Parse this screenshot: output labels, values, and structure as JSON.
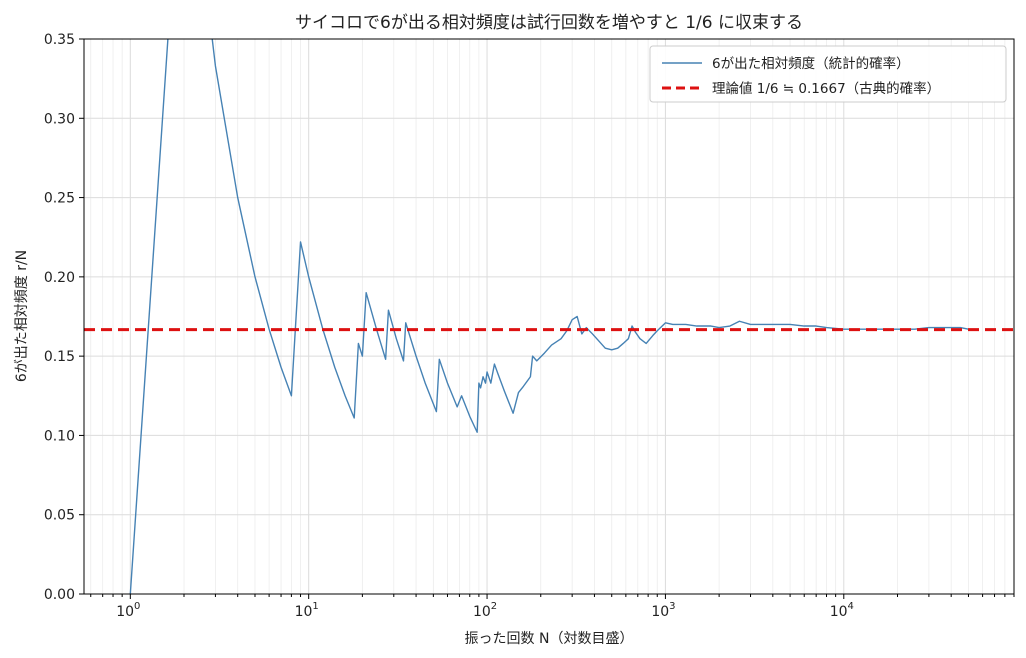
{
  "chart_data": {
    "type": "line",
    "title": "サイコロで6が出る相対頻度は試行回数を増やすと 1/6 に収束する",
    "xlabel": "振った回数 N（対数目盛）",
    "ylabel": "6が出た相対頻度 r/N",
    "xscale": "log",
    "xlim": [
      0.55,
      90000
    ],
    "ylim": [
      0,
      0.35
    ],
    "yticks": [
      0.0,
      0.05,
      0.1,
      0.15,
      0.2,
      0.25,
      0.3,
      0.35
    ],
    "ytick_labels": [
      "0.00",
      "0.05",
      "0.10",
      "0.15",
      "0.20",
      "0.25",
      "0.30",
      "0.35"
    ],
    "xticks": [
      {
        "value": 1,
        "base": "10",
        "exp": "0"
      },
      {
        "value": 10,
        "base": "10",
        "exp": "1"
      },
      {
        "value": 100,
        "base": "10",
        "exp": "2"
      },
      {
        "value": 1000,
        "base": "10",
        "exp": "3"
      },
      {
        "value": 10000,
        "base": "10",
        "exp": "4"
      }
    ],
    "grid": true,
    "legend_position": "top-right",
    "series": [
      {
        "name": "6が出た相対頻度（統計的確率）",
        "color": "#4682b4",
        "style": "solid",
        "x": [
          1,
          2,
          3,
          4,
          5,
          6,
          7,
          8,
          9,
          10,
          12,
          14,
          16,
          18,
          19,
          20,
          21,
          24,
          27,
          28,
          31,
          34,
          35,
          40,
          45,
          52,
          54,
          60,
          68,
          72,
          80,
          88,
          90,
          92,
          95,
          98,
          100,
          105,
          110,
          115,
          125,
          140,
          150,
          160,
          175,
          180,
          190,
          210,
          230,
          260,
          280,
          300,
          320,
          340,
          360,
          390,
          420,
          460,
          500,
          540,
          580,
          620,
          650,
          680,
          720,
          780,
          850,
          900,
          1000,
          1100,
          1300,
          1500,
          1800,
          2000,
          2300,
          2600,
          3000,
          3500,
          4000,
          5000,
          6000,
          7000,
          8000,
          10000,
          13000,
          16000,
          20000,
          25000,
          30000,
          35000,
          40000,
          45000,
          50000
        ],
        "y": [
          0.0,
          0.5,
          0.333,
          0.25,
          0.2,
          0.167,
          0.143,
          0.125,
          0.222,
          0.2,
          0.167,
          0.143,
          0.125,
          0.111,
          0.158,
          0.15,
          0.19,
          0.167,
          0.148,
          0.179,
          0.161,
          0.147,
          0.171,
          0.15,
          0.133,
          0.115,
          0.148,
          0.133,
          0.118,
          0.125,
          0.112,
          0.102,
          0.133,
          0.13,
          0.137,
          0.133,
          0.14,
          0.133,
          0.145,
          0.139,
          0.128,
          0.114,
          0.127,
          0.131,
          0.137,
          0.15,
          0.147,
          0.152,
          0.157,
          0.161,
          0.166,
          0.173,
          0.175,
          0.164,
          0.168,
          0.164,
          0.16,
          0.155,
          0.154,
          0.155,
          0.158,
          0.161,
          0.169,
          0.165,
          0.161,
          0.158,
          0.163,
          0.166,
          0.171,
          0.17,
          0.17,
          0.169,
          0.169,
          0.168,
          0.169,
          0.172,
          0.17,
          0.17,
          0.17,
          0.17,
          0.169,
          0.169,
          0.168,
          0.167,
          0.167,
          0.167,
          0.167,
          0.167,
          0.168,
          0.168,
          0.168,
          0.168,
          0.167
        ]
      },
      {
        "name": "理論値 1/6 ≒ 0.1667（古典的確率）",
        "color": "#dd1111",
        "style": "dashed",
        "y_constant": 0.1667
      }
    ]
  }
}
